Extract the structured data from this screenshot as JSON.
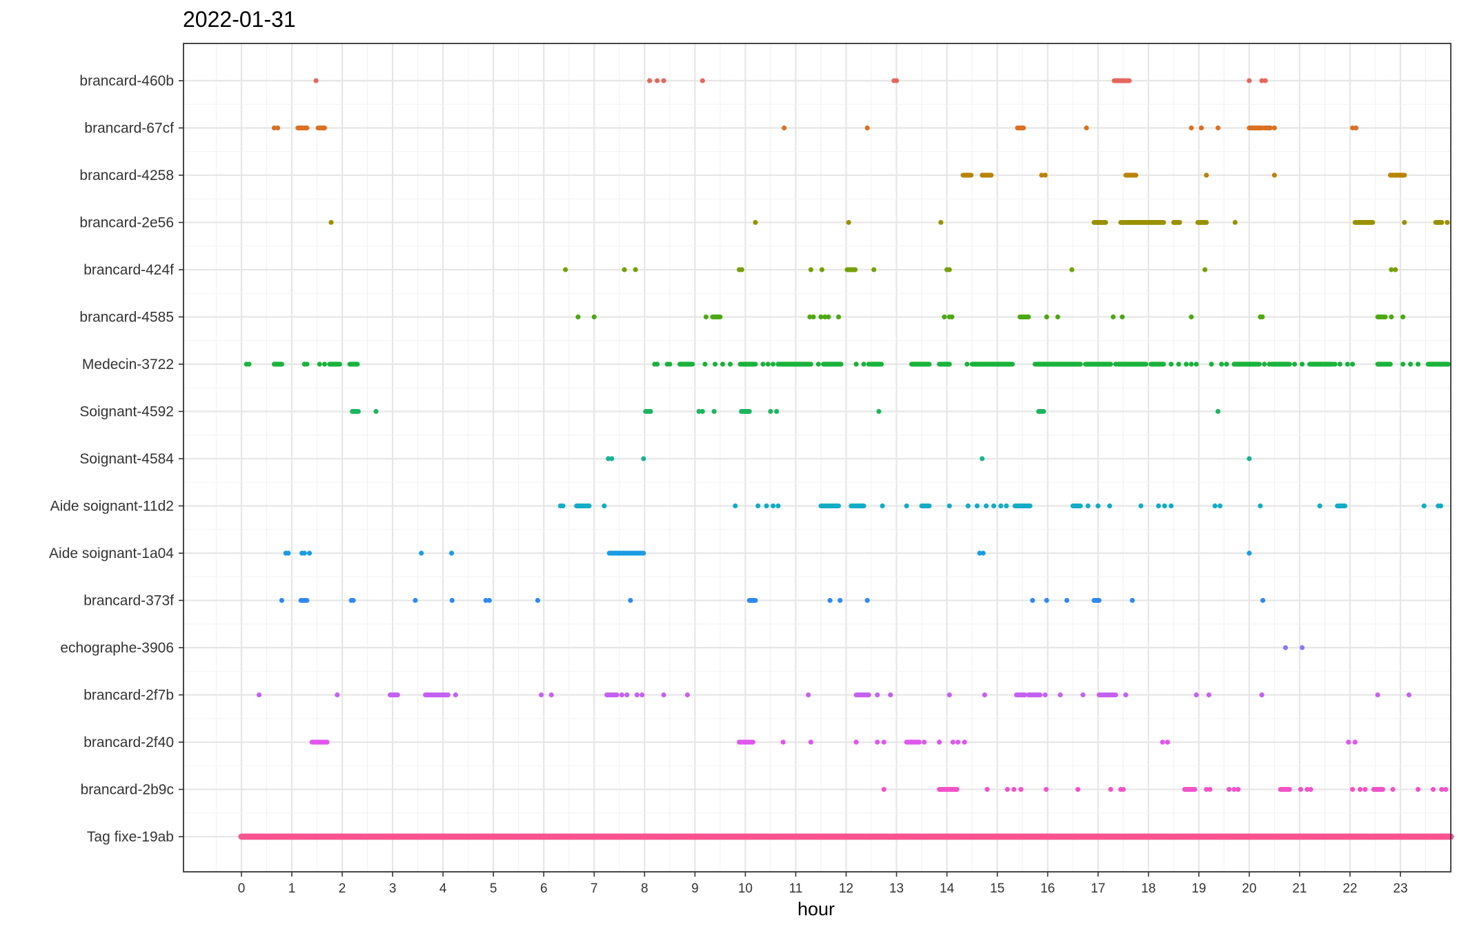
{
  "chart_data": {
    "type": "scatter",
    "title": "2022-01-31",
    "xlabel": "hour",
    "ylabel": "",
    "xlim": [
      -1.15,
      24.0
    ],
    "x_ticks": [
      "0",
      "1",
      "2",
      "3",
      "4",
      "5",
      "6",
      "7",
      "8",
      "9",
      "10",
      "11",
      "12",
      "13",
      "14",
      "15",
      "16",
      "17",
      "18",
      "19",
      "20",
      "21",
      "22",
      "23"
    ],
    "grid": true,
    "series": [
      {
        "name": "Tag fixe-19ab",
        "color": "#F8538F",
        "segments": [
          [
            0.0,
            24.0
          ]
        ],
        "points": []
      },
      {
        "name": "brancard-2b9c",
        "color": "#F252C8",
        "segments": [
          [
            13.85,
            14.2
          ],
          [
            18.72,
            18.92
          ],
          [
            20.62,
            20.8
          ],
          [
            22.47,
            22.65
          ]
        ],
        "points": [
          12.75,
          14.8,
          15.2,
          15.33,
          15.47,
          15.97,
          16.6,
          17.25,
          17.45,
          17.5,
          19.15,
          19.22,
          19.6,
          19.7,
          19.78,
          21.02,
          21.15,
          21.22,
          22.05,
          22.2,
          22.3,
          22.85,
          23.35,
          23.65,
          23.82,
          23.9
        ]
      },
      {
        "name": "brancard-2f40",
        "color": "#E155EF",
        "segments": [
          [
            1.4,
            1.7
          ],
          [
            9.88,
            10.15
          ],
          [
            13.2,
            13.45
          ]
        ],
        "points": [
          10.75,
          11.3,
          12.2,
          12.62,
          12.75,
          13.55,
          13.85,
          14.12,
          14.22,
          14.35,
          18.28,
          18.38,
          21.97,
          22.1
        ]
      },
      {
        "name": "brancard-2f7b",
        "color": "#C561F2",
        "segments": [
          [
            2.95,
            3.1
          ],
          [
            3.65,
            4.1
          ],
          [
            7.25,
            7.45
          ],
          [
            12.2,
            12.45
          ],
          [
            15.38,
            15.55
          ],
          [
            15.62,
            15.85
          ],
          [
            17.02,
            17.35
          ]
        ],
        "points": [
          0.35,
          1.9,
          4.25,
          5.95,
          6.15,
          7.55,
          7.65,
          7.85,
          7.95,
          8.38,
          8.85,
          11.25,
          12.62,
          12.88,
          14.05,
          14.75,
          15.95,
          16.25,
          16.7,
          17.55,
          18.95,
          19.2,
          20.25,
          22.55,
          23.17
        ]
      },
      {
        "name": "echographe-3906",
        "color": "#8F74F8",
        "segments": [],
        "points": [
          20.72,
          21.05
        ]
      },
      {
        "name": "brancard-373f",
        "color": "#2F89F2",
        "segments": [
          [
            1.18,
            1.3
          ],
          [
            10.08,
            10.2
          ],
          [
            16.92,
            17.02
          ]
        ],
        "points": [
          0.8,
          2.18,
          2.22,
          3.45,
          4.18,
          4.85,
          4.92,
          5.88,
          7.72,
          11.68,
          11.88,
          12.42,
          15.7,
          15.98,
          16.38,
          17.68,
          20.27
        ]
      },
      {
        "name": "Aide soignant-1a04",
        "color": "#1A9CE4",
        "segments": [
          [
            7.3,
            7.98
          ]
        ],
        "points": [
          0.88,
          0.93,
          1.2,
          1.25,
          1.35,
          3.57,
          4.17,
          14.65,
          14.72,
          20.0
        ]
      },
      {
        "name": "Aide soignant-11d2",
        "color": "#12ACC6",
        "segments": [
          [
            6.65,
            6.9
          ],
          [
            11.5,
            11.85
          ],
          [
            12.1,
            12.35
          ],
          [
            13.5,
            13.65
          ],
          [
            15.35,
            15.65
          ],
          [
            16.5,
            16.65
          ],
          [
            21.75,
            21.9
          ]
        ],
        "points": [
          6.33,
          6.38,
          7.2,
          9.8,
          10.25,
          10.42,
          10.55,
          10.65,
          12.72,
          13.2,
          14.05,
          14.42,
          14.6,
          14.78,
          14.93,
          15.07,
          15.18,
          16.8,
          17.0,
          17.23,
          17.85,
          18.2,
          18.32,
          18.45,
          19.32,
          19.42,
          20.22,
          21.4,
          23.47,
          23.75,
          23.8
        ]
      },
      {
        "name": "Soignant-4584",
        "color": "#17B393",
        "segments": [],
        "points": [
          7.28,
          7.35,
          7.98,
          14.7,
          20.0
        ]
      },
      {
        "name": "Soignant-4592",
        "color": "#1CB560",
        "segments": [
          [
            2.2,
            2.32
          ],
          [
            8.02,
            8.12
          ],
          [
            9.92,
            10.08
          ],
          [
            15.82,
            15.92
          ]
        ],
        "points": [
          2.67,
          9.08,
          9.15,
          9.38,
          10.5,
          10.62,
          12.65,
          19.38
        ]
      },
      {
        "name": "Medecin-3722",
        "color": "#19B33B",
        "segments": [
          [
            0.65,
            0.8
          ],
          [
            1.75,
            1.95
          ],
          [
            2.15,
            2.3
          ],
          [
            8.7,
            8.95
          ],
          [
            9.9,
            10.2
          ],
          [
            10.65,
            11.3
          ],
          [
            11.55,
            11.9
          ],
          [
            12.5,
            12.7
          ],
          [
            13.3,
            13.65
          ],
          [
            13.85,
            14.05
          ],
          [
            14.5,
            15.3
          ],
          [
            15.75,
            16.65
          ],
          [
            16.75,
            17.25
          ],
          [
            17.4,
            17.95
          ],
          [
            18.05,
            18.3
          ],
          [
            19.7,
            20.2
          ],
          [
            20.45,
            20.8
          ],
          [
            21.2,
            21.65
          ],
          [
            22.55,
            22.8
          ],
          [
            23.55,
            23.95
          ]
        ],
        "points": [
          0.1,
          0.15,
          1.25,
          1.3,
          1.55,
          1.65,
          8.2,
          8.25,
          8.45,
          8.5,
          9.2,
          9.4,
          9.55,
          9.7,
          10.35,
          10.45,
          10.55,
          11.45,
          12.2,
          12.35,
          12.45,
          14.4,
          17.35,
          18.45,
          18.6,
          18.75,
          18.85,
          18.95,
          19.25,
          19.45,
          19.55,
          20.3,
          20.4,
          20.9,
          21.05,
          21.7,
          21.8,
          21.95,
          22.05,
          23.05,
          23.2,
          23.35
        ]
      },
      {
        "name": "brancard-4585",
        "color": "#4CA812",
        "segments": [
          [
            9.35,
            9.5
          ],
          [
            15.45,
            15.62
          ],
          [
            22.55,
            22.7
          ]
        ],
        "points": [
          6.68,
          7.0,
          9.22,
          11.28,
          11.35,
          11.5,
          11.58,
          11.65,
          11.85,
          13.95,
          14.05,
          14.1,
          15.98,
          16.2,
          17.3,
          17.48,
          18.85,
          20.22,
          20.26,
          22.82,
          23.05
        ]
      },
      {
        "name": "brancard-424f",
        "color": "#75A004",
        "segments": [
          [
            12.02,
            12.18
          ]
        ],
        "points": [
          6.43,
          7.6,
          7.82,
          9.88,
          9.93,
          11.3,
          11.52,
          12.55,
          14.0,
          14.05,
          16.48,
          19.12,
          22.82,
          22.9
        ]
      },
      {
        "name": "brancard-2e56",
        "color": "#999100",
        "segments": [
          [
            16.92,
            17.15
          ],
          [
            17.45,
            18.3
          ],
          [
            18.5,
            18.62
          ],
          [
            18.98,
            19.15
          ],
          [
            22.1,
            22.45
          ],
          [
            23.7,
            23.82
          ]
        ],
        "points": [
          1.78,
          10.2,
          12.05,
          13.88,
          19.72,
          23.08,
          23.93
        ]
      },
      {
        "name": "brancard-4258",
        "color": "#B88401",
        "segments": [
          [
            14.32,
            14.48
          ],
          [
            14.7,
            14.88
          ],
          [
            17.55,
            17.75
          ],
          [
            22.8,
            23.08
          ]
        ],
        "points": [
          15.88,
          15.95,
          19.15,
          20.5
        ]
      },
      {
        "name": "brancard-67cf",
        "color": "#DA7123",
        "segments": [
          [
            1.12,
            1.3
          ],
          [
            1.52,
            1.65
          ],
          [
            15.4,
            15.52
          ],
          [
            20.0,
            20.25
          ],
          [
            20.3,
            20.42
          ]
        ],
        "points": [
          0.65,
          0.72,
          10.77,
          12.42,
          16.77,
          18.85,
          19.05,
          19.38,
          20.5,
          22.05,
          22.12
        ]
      },
      {
        "name": "brancard-460b",
        "color": "#E5665B",
        "segments": [
          [
            17.32,
            17.62
          ]
        ],
        "points": [
          1.48,
          8.1,
          8.25,
          8.38,
          9.15,
          12.95,
          13.0,
          20.0,
          20.25,
          20.32
        ]
      }
    ]
  }
}
